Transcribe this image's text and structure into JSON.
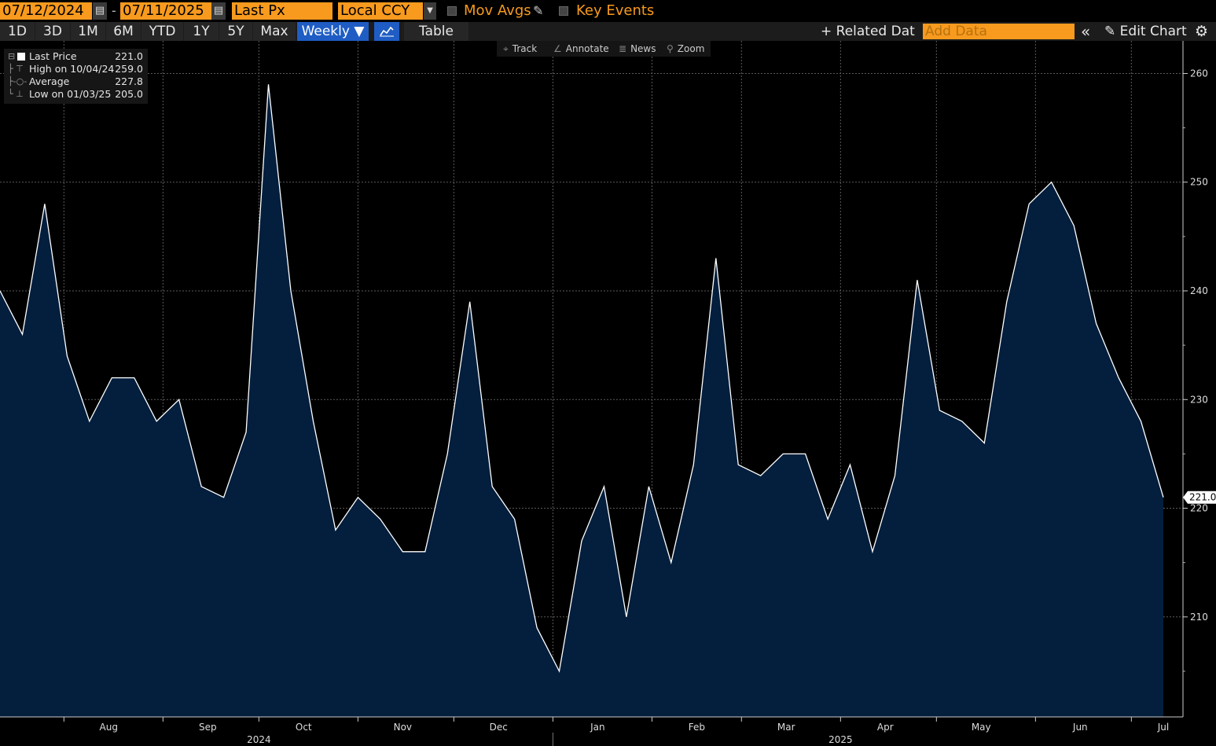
{
  "toolbar": {
    "start_date": "07/12/2024",
    "end_date": "07/11/2025",
    "date_separator": "-",
    "field": "Last Px",
    "currency": "Local CCY",
    "mov_avgs_label": "Mov Avgs",
    "key_events_label": "Key Events",
    "periods": [
      "1D",
      "3D",
      "1M",
      "6M",
      "YTD",
      "1Y",
      "5Y",
      "Max"
    ],
    "frequency": "Weekly ▼",
    "table_label": "Table",
    "related_data_label": "Related Dat",
    "add_data_placeholder": "Add Data",
    "edit_chart_label": "Edit Chart"
  },
  "chart_tools": {
    "track": "Track",
    "annotate": "Annotate",
    "news": "News",
    "zoom": "Zoom"
  },
  "legend": {
    "last_price": {
      "label": "Last Price",
      "value": "221.0"
    },
    "high": {
      "label": "High on 10/04/24",
      "value": "259.0"
    },
    "average": {
      "label": "Average",
      "value": "227.8"
    },
    "low": {
      "label": "Low on 01/03/25",
      "value": "205.0"
    }
  },
  "chart_data": {
    "type": "area",
    "x": [
      "2024-07-12",
      "2024-07-19",
      "2024-07-26",
      "2024-08-02",
      "2024-08-09",
      "2024-08-16",
      "2024-08-23",
      "2024-08-30",
      "2024-09-06",
      "2024-09-13",
      "2024-09-20",
      "2024-09-27",
      "2024-10-04",
      "2024-10-11",
      "2024-10-18",
      "2024-10-25",
      "2024-11-01",
      "2024-11-08",
      "2024-11-15",
      "2024-11-22",
      "2024-11-29",
      "2024-12-06",
      "2024-12-13",
      "2024-12-20",
      "2024-12-27",
      "2025-01-03",
      "2025-01-10",
      "2025-01-17",
      "2025-01-24",
      "2025-01-31",
      "2025-02-07",
      "2025-02-14",
      "2025-02-21",
      "2025-02-28",
      "2025-03-07",
      "2025-03-14",
      "2025-03-21",
      "2025-03-28",
      "2025-04-04",
      "2025-04-11",
      "2025-04-18",
      "2025-04-25",
      "2025-05-02",
      "2025-05-09",
      "2025-05-16",
      "2025-05-23",
      "2025-05-30",
      "2025-06-06",
      "2025-06-13",
      "2025-06-20",
      "2025-06-27",
      "2025-07-04",
      "2025-07-11"
    ],
    "series": [
      {
        "values": [
          240,
          236,
          248,
          234,
          228,
          232,
          232,
          228,
          230,
          222,
          221,
          227,
          259,
          240,
          228,
          218,
          221,
          219,
          216,
          216,
          225,
          239,
          222,
          219,
          209,
          205,
          217,
          222,
          210,
          222,
          215,
          224,
          243,
          224,
          223,
          225,
          225,
          219,
          224,
          216,
          223,
          241,
          229,
          228,
          226,
          239,
          248,
          250,
          246,
          237,
          232,
          228,
          221
        ]
      }
    ],
    "ylim": [
      200.8,
      263
    ],
    "yticks": [
      210,
      220,
      230,
      240,
      250,
      260
    ],
    "month_labels": [
      "Aug",
      "Sep",
      "Oct",
      "Nov",
      "Dec",
      "Jan",
      "Feb",
      "Mar",
      "Apr",
      "May",
      "Jun",
      "Jul"
    ],
    "year_labels": [
      "2024",
      "2025"
    ],
    "last_value_label": "221.0",
    "grid": true,
    "line_color": "#ffffff",
    "fill_color": "#041e3d",
    "background": "#000000"
  }
}
